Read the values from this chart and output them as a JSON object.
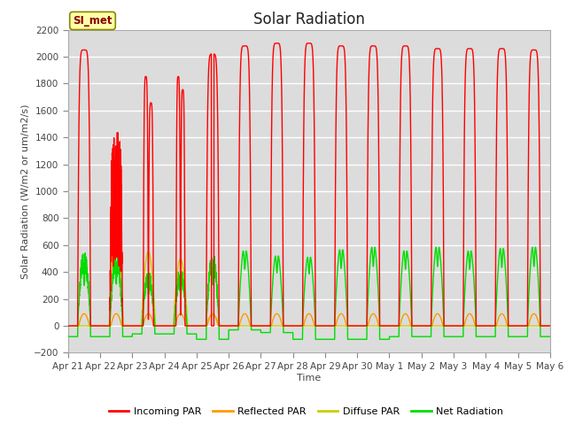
{
  "title": "Solar Radiation",
  "ylabel": "Solar Radiation (W/m2 or um/m2/s)",
  "xlabel": "Time",
  "ylim": [
    -200,
    2200
  ],
  "yticks": [
    -200,
    0,
    200,
    400,
    600,
    800,
    1000,
    1200,
    1400,
    1600,
    1800,
    2000,
    2200
  ],
  "x_tick_labels": [
    "Apr 21",
    "Apr 22",
    "Apr 23",
    "Apr 24",
    "Apr 25",
    "Apr 26",
    "Apr 27",
    "Apr 28",
    "Apr 29",
    "Apr 30",
    "May 1",
    "May 2",
    "May 3",
    "May 4",
    "May 5",
    "May 6"
  ],
  "fig_bg_color": "#ffffff",
  "plot_bg_color": "#dcdcdc",
  "grid_color": "#ffffff",
  "colors": {
    "incoming": "#ff0000",
    "reflected": "#ff9900",
    "diffuse": "#cccc00",
    "net": "#00dd00"
  },
  "legend_labels": [
    "Incoming PAR",
    "Reflected PAR",
    "Diffuse PAR",
    "Net Radiation"
  ],
  "station_label": "SI_met",
  "station_label_bg": "#ffffaa",
  "station_label_border": "#888800",
  "title_fontsize": 12,
  "label_fontsize": 8,
  "tick_fontsize": 7.5
}
